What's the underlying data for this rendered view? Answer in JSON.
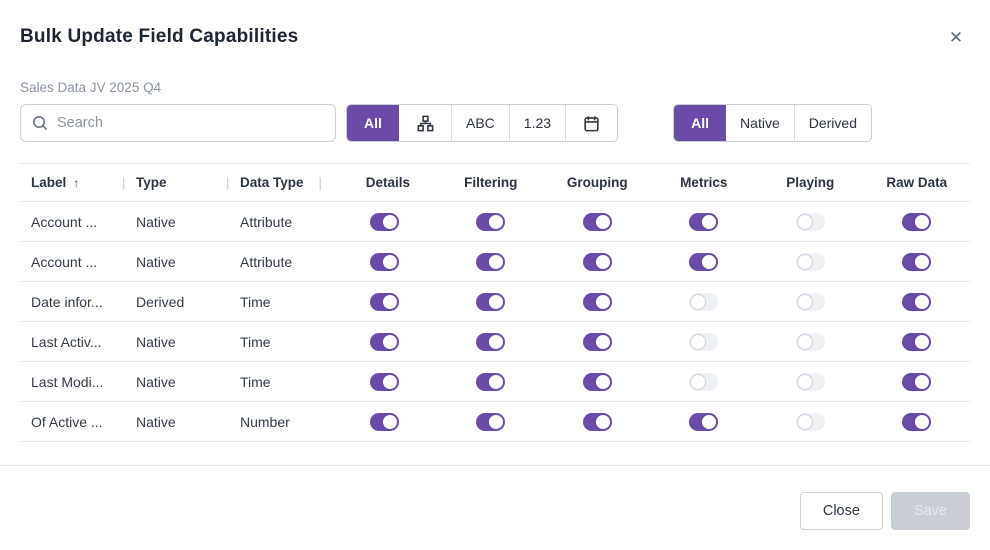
{
  "colors": {
    "accent": "#6C4AA8"
  },
  "modal": {
    "title": "Bulk Update Field Capabilities",
    "close_glyph": "✕",
    "subtitle": "Sales Data JV 2025 Q4"
  },
  "search": {
    "placeholder": "Search",
    "value": ""
  },
  "type_filter": {
    "all_label": "All",
    "abc_label": "ABC",
    "numeric_label": "1.23",
    "selected": "All",
    "options": [
      "All",
      "hierarchy-icon",
      "ABC",
      "1.23",
      "calendar-icon"
    ]
  },
  "origin_filter": {
    "all_label": "All",
    "native_label": "Native",
    "derived_label": "Derived",
    "selected": "All"
  },
  "table": {
    "sort_column": "Label",
    "sort_direction": "asc",
    "sort_glyph": "↑",
    "separator_glyph": "|",
    "text_columns": [
      "Label",
      "Type",
      "Data Type"
    ],
    "toggle_columns": [
      "Details",
      "Filtering",
      "Grouping",
      "Metrics",
      "Playing",
      "Raw Data"
    ],
    "rows": [
      {
        "label": "Account ...",
        "type": "Native",
        "data_type": "Attribute",
        "toggles": [
          true,
          true,
          true,
          true,
          false,
          true
        ]
      },
      {
        "label": "Account ...",
        "type": "Native",
        "data_type": "Attribute",
        "toggles": [
          true,
          true,
          true,
          true,
          false,
          true
        ]
      },
      {
        "label": "Date infor...",
        "type": "Derived",
        "data_type": "Time",
        "toggles": [
          true,
          true,
          true,
          false,
          false,
          true
        ]
      },
      {
        "label": "Last Activ...",
        "type": "Native",
        "data_type": "Time",
        "toggles": [
          true,
          true,
          true,
          false,
          false,
          true
        ]
      },
      {
        "label": "Last Modi...",
        "type": "Native",
        "data_type": "Time",
        "toggles": [
          true,
          true,
          true,
          false,
          false,
          true
        ]
      },
      {
        "label": "Of Active ...",
        "type": "Native",
        "data_type": "Number",
        "toggles": [
          true,
          true,
          true,
          true,
          false,
          true
        ]
      }
    ]
  },
  "footer": {
    "close_label": "Close",
    "save_label": "Save",
    "save_disabled": true
  }
}
